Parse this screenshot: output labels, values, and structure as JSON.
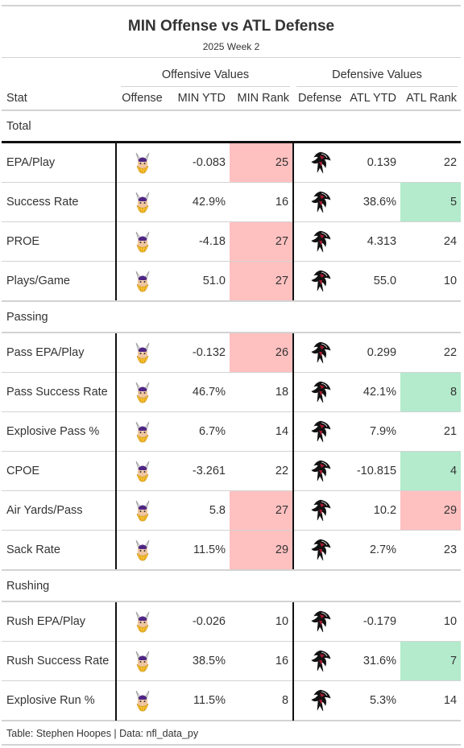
{
  "header": {
    "title": "MIN Offense vs ATL Defense",
    "subtitle": "2025 Week 2"
  },
  "spanners": {
    "offense": "Offensive Values",
    "defense": "Defensive Values"
  },
  "columns": [
    "Stat",
    "Offense",
    "MIN YTD",
    "MIN Rank",
    "Defense",
    "ATL YTD",
    "ATL Rank"
  ],
  "icons": {
    "offense": "vikings-logo-icon",
    "defense": "falcons-logo-icon"
  },
  "colors": {
    "bad": "#ffc0c0",
    "good": "#b3ebcc"
  },
  "groups": [
    {
      "label": "Total",
      "rows": [
        {
          "stat": "EPA/Play",
          "min_ytd": "-0.083",
          "min_rank": "25",
          "min_hl": "bad",
          "atl_ytd": "0.139",
          "atl_rank": "22",
          "atl_hl": ""
        },
        {
          "stat": "Success Rate",
          "min_ytd": "42.9%",
          "min_rank": "16",
          "min_hl": "",
          "atl_ytd": "38.6%",
          "atl_rank": "5",
          "atl_hl": "good"
        },
        {
          "stat": "PROE",
          "min_ytd": "-4.18",
          "min_rank": "27",
          "min_hl": "bad",
          "atl_ytd": "4.313",
          "atl_rank": "24",
          "atl_hl": ""
        },
        {
          "stat": "Plays/Game",
          "min_ytd": "51.0",
          "min_rank": "27",
          "min_hl": "bad",
          "atl_ytd": "55.0",
          "atl_rank": "10",
          "atl_hl": ""
        }
      ]
    },
    {
      "label": "Passing",
      "rows": [
        {
          "stat": "Pass EPA/Play",
          "min_ytd": "-0.132",
          "min_rank": "26",
          "min_hl": "bad",
          "atl_ytd": "0.299",
          "atl_rank": "22",
          "atl_hl": ""
        },
        {
          "stat": "Pass Success Rate",
          "min_ytd": "46.7%",
          "min_rank": "18",
          "min_hl": "",
          "atl_ytd": "42.1%",
          "atl_rank": "8",
          "atl_hl": "good"
        },
        {
          "stat": "Explosive Pass %",
          "min_ytd": "6.7%",
          "min_rank": "14",
          "min_hl": "",
          "atl_ytd": "7.9%",
          "atl_rank": "21",
          "atl_hl": ""
        },
        {
          "stat": "CPOE",
          "min_ytd": "-3.261",
          "min_rank": "22",
          "min_hl": "",
          "atl_ytd": "-10.815",
          "atl_rank": "4",
          "atl_hl": "good"
        },
        {
          "stat": "Air Yards/Pass",
          "min_ytd": "5.8",
          "min_rank": "27",
          "min_hl": "bad",
          "atl_ytd": "10.2",
          "atl_rank": "29",
          "atl_hl": "bad"
        },
        {
          "stat": "Sack Rate",
          "min_ytd": "11.5%",
          "min_rank": "29",
          "min_hl": "bad",
          "atl_ytd": "2.7%",
          "atl_rank": "23",
          "atl_hl": ""
        }
      ]
    },
    {
      "label": "Rushing",
      "rows": [
        {
          "stat": "Rush EPA/Play",
          "min_ytd": "-0.026",
          "min_rank": "10",
          "min_hl": "",
          "atl_ytd": "-0.179",
          "atl_rank": "10",
          "atl_hl": ""
        },
        {
          "stat": "Rush Success Rate",
          "min_ytd": "38.5%",
          "min_rank": "16",
          "min_hl": "",
          "atl_ytd": "31.6%",
          "atl_rank": "7",
          "atl_hl": "good"
        },
        {
          "stat": "Explosive Run %",
          "min_ytd": "11.5%",
          "min_rank": "8",
          "min_hl": "",
          "atl_ytd": "5.3%",
          "atl_rank": "14",
          "atl_hl": ""
        }
      ]
    }
  ],
  "source_note": "Table: Stephen Hoopes | Data: nfl_data_py"
}
